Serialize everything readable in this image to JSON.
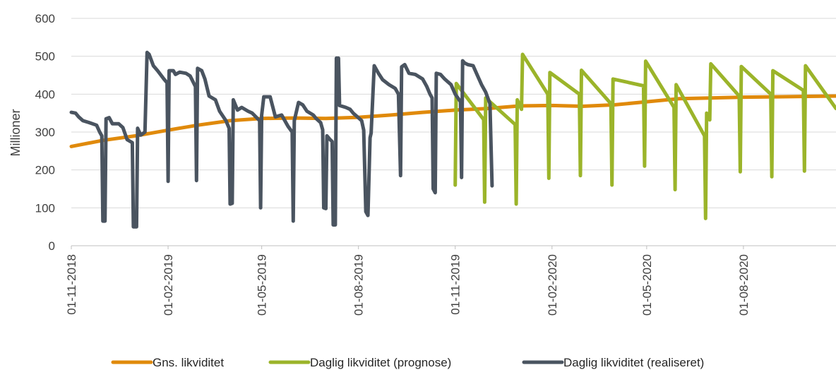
{
  "chart_data": {
    "type": "line",
    "ylabel": "Millioner",
    "ylim": [
      0,
      600
    ],
    "yticks": [
      "0",
      "100",
      "200",
      "300",
      "400",
      "500",
      "600"
    ],
    "xlim": [
      "2018-11-01",
      "2020-10-28"
    ],
    "xticks": [
      "01-11-2018",
      "01-02-2019",
      "01-05-2019",
      "01-08-2019",
      "01-11-2019",
      "01-02-2020",
      "01-05-2020",
      "01-08-2020"
    ],
    "grid": true,
    "legend_position": "bottom",
    "series": [
      {
        "name": "Gns. likviditet",
        "color": "#E08A0B",
        "points": [
          [
            "2018-11-01",
            262
          ],
          [
            "2018-12-01",
            278
          ],
          [
            "2019-01-01",
            290
          ],
          [
            "2019-02-01",
            305
          ],
          [
            "2019-03-01",
            318
          ],
          [
            "2019-04-01",
            330
          ],
          [
            "2019-05-01",
            336
          ],
          [
            "2019-06-01",
            337
          ],
          [
            "2019-07-01",
            336
          ],
          [
            "2019-08-01",
            339
          ],
          [
            "2019-09-01",
            345
          ],
          [
            "2019-10-01",
            352
          ],
          [
            "2019-11-01",
            358
          ],
          [
            "2019-12-01",
            362
          ],
          [
            "2020-01-01",
            369
          ],
          [
            "2020-02-01",
            370
          ],
          [
            "2020-03-01",
            368
          ],
          [
            "2020-04-01",
            372
          ],
          [
            "2020-05-01",
            380
          ],
          [
            "2020-06-01",
            388
          ],
          [
            "2020-07-01",
            390
          ],
          [
            "2020-08-01",
            392
          ],
          [
            "2020-09-01",
            393
          ],
          [
            "2020-10-28",
            395
          ]
        ]
      },
      {
        "name": "Daglig likviditet (prognose)",
        "color": "#9BB42A",
        "points": [
          [
            "2019-11-01",
            160
          ],
          [
            "2019-11-02",
            428
          ],
          [
            "2019-11-28",
            333
          ],
          [
            "2019-11-29",
            115
          ],
          [
            "2019-11-30",
            390
          ],
          [
            "2019-12-28",
            320
          ],
          [
            "2019-12-29",
            110
          ],
          [
            "2019-12-30",
            385
          ],
          [
            "2020-01-03",
            360
          ],
          [
            "2020-01-04",
            505
          ],
          [
            "2020-01-28",
            400
          ],
          [
            "2020-01-29",
            178
          ],
          [
            "2020-01-30",
            457
          ],
          [
            "2020-02-27",
            400
          ],
          [
            "2020-02-28",
            185
          ],
          [
            "2020-02-29",
            463
          ],
          [
            "2020-03-28",
            375
          ],
          [
            "2020-03-29",
            160
          ],
          [
            "2020-03-30",
            440
          ],
          [
            "2020-04-28",
            422
          ],
          [
            "2020-04-29",
            210
          ],
          [
            "2020-04-30",
            487
          ],
          [
            "2020-05-27",
            365
          ],
          [
            "2020-05-28",
            148
          ],
          [
            "2020-05-29",
            425
          ],
          [
            "2020-06-25",
            290
          ],
          [
            "2020-06-26",
            72
          ],
          [
            "2020-06-27",
            350
          ],
          [
            "2020-06-30",
            332
          ],
          [
            "2020-07-01",
            480
          ],
          [
            "2020-07-28",
            395
          ],
          [
            "2020-07-29",
            195
          ],
          [
            "2020-07-30",
            473
          ],
          [
            "2020-08-27",
            400
          ],
          [
            "2020-08-28",
            182
          ],
          [
            "2020-08-29",
            462
          ],
          [
            "2020-09-27",
            410
          ],
          [
            "2020-09-28",
            197
          ],
          [
            "2020-09-29",
            475
          ],
          [
            "2020-10-28",
            362
          ]
        ]
      },
      {
        "name": "Daglig likviditet (realiseret)",
        "color": "#4A5460",
        "points": [
          [
            "2018-11-01",
            352
          ],
          [
            "2018-11-05",
            350
          ],
          [
            "2018-11-08",
            340
          ],
          [
            "2018-11-12",
            330
          ],
          [
            "2018-11-18",
            325
          ],
          [
            "2018-11-25",
            318
          ],
          [
            "2018-11-28",
            300
          ],
          [
            "2018-11-30",
            290
          ],
          [
            "2018-12-01",
            65
          ],
          [
            "2018-12-03",
            65
          ],
          [
            "2018-12-04",
            335
          ],
          [
            "2018-12-07",
            338
          ],
          [
            "2018-12-10",
            322
          ],
          [
            "2018-12-16",
            322
          ],
          [
            "2018-12-20",
            312
          ],
          [
            "2018-12-24",
            280
          ],
          [
            "2018-12-29",
            272
          ],
          [
            "2018-12-30",
            50
          ],
          [
            "2019-01-02",
            50
          ],
          [
            "2019-01-03",
            310
          ],
          [
            "2019-01-06",
            292
          ],
          [
            "2019-01-10",
            300
          ],
          [
            "2019-01-12",
            510
          ],
          [
            "2019-01-14",
            505
          ],
          [
            "2019-01-18",
            475
          ],
          [
            "2019-01-22",
            462
          ],
          [
            "2019-01-28",
            440
          ],
          [
            "2019-01-31",
            430
          ],
          [
            "2019-02-01",
            170
          ],
          [
            "2019-02-02",
            462
          ],
          [
            "2019-02-06",
            462
          ],
          [
            "2019-02-08",
            452
          ],
          [
            "2019-02-12",
            458
          ],
          [
            "2019-02-18",
            455
          ],
          [
            "2019-02-22",
            448
          ],
          [
            "2019-02-27",
            420
          ],
          [
            "2019-02-28",
            172
          ],
          [
            "2019-03-01",
            468
          ],
          [
            "2019-03-05",
            462
          ],
          [
            "2019-03-08",
            440
          ],
          [
            "2019-03-12",
            395
          ],
          [
            "2019-03-18",
            385
          ],
          [
            "2019-03-22",
            355
          ],
          [
            "2019-03-28",
            330
          ],
          [
            "2019-03-31",
            310
          ],
          [
            "2019-04-01",
            110
          ],
          [
            "2019-04-03",
            112
          ],
          [
            "2019-04-04",
            385
          ],
          [
            "2019-04-08",
            358
          ],
          [
            "2019-04-12",
            365
          ],
          [
            "2019-04-18",
            355
          ],
          [
            "2019-04-22",
            350
          ],
          [
            "2019-04-29",
            330
          ],
          [
            "2019-04-30",
            100
          ],
          [
            "2019-05-01",
            345
          ],
          [
            "2019-05-03",
            393
          ],
          [
            "2019-05-09",
            393
          ],
          [
            "2019-05-14",
            340
          ],
          [
            "2019-05-20",
            345
          ],
          [
            "2019-05-26",
            315
          ],
          [
            "2019-05-30",
            300
          ],
          [
            "2019-05-31",
            65
          ],
          [
            "2019-06-01",
            330
          ],
          [
            "2019-06-05",
            378
          ],
          [
            "2019-06-09",
            372
          ],
          [
            "2019-06-13",
            355
          ],
          [
            "2019-06-19",
            345
          ],
          [
            "2019-06-22",
            335
          ],
          [
            "2019-06-26",
            325
          ],
          [
            "2019-06-28",
            306
          ],
          [
            "2019-06-29",
            100
          ],
          [
            "2019-07-01",
            98
          ],
          [
            "2019-07-02",
            290
          ],
          [
            "2019-07-05",
            280
          ],
          [
            "2019-07-07",
            275
          ],
          [
            "2019-07-08",
            55
          ],
          [
            "2019-07-10",
            55
          ],
          [
            "2019-07-11",
            495
          ],
          [
            "2019-07-13",
            495
          ],
          [
            "2019-07-14",
            370
          ],
          [
            "2019-07-20",
            365
          ],
          [
            "2019-07-24",
            360
          ],
          [
            "2019-07-27",
            350
          ],
          [
            "2019-07-31",
            340
          ],
          [
            "2019-08-04",
            330
          ],
          [
            "2019-08-06",
            305
          ],
          [
            "2019-08-08",
            90
          ],
          [
            "2019-08-10",
            80
          ],
          [
            "2019-08-12",
            285
          ],
          [
            "2019-08-13",
            297
          ],
          [
            "2019-08-16",
            475
          ],
          [
            "2019-08-20",
            455
          ],
          [
            "2019-08-24",
            438
          ],
          [
            "2019-08-30",
            425
          ],
          [
            "2019-09-05",
            415
          ],
          [
            "2019-09-08",
            400
          ],
          [
            "2019-09-10",
            185
          ],
          [
            "2019-09-11",
            472
          ],
          [
            "2019-09-14",
            478
          ],
          [
            "2019-09-18",
            455
          ],
          [
            "2019-09-24",
            452
          ],
          [
            "2019-10-01",
            440
          ],
          [
            "2019-10-05",
            420
          ],
          [
            "2019-10-08",
            400
          ],
          [
            "2019-10-10",
            390
          ],
          [
            "2019-10-11",
            150
          ],
          [
            "2019-10-13",
            140
          ],
          [
            "2019-10-14",
            455
          ],
          [
            "2019-10-18",
            452
          ],
          [
            "2019-10-22",
            440
          ],
          [
            "2019-10-28",
            425
          ],
          [
            "2019-11-01",
            400
          ],
          [
            "2019-11-06",
            380
          ],
          [
            "2019-11-07",
            180
          ],
          [
            "2019-11-08",
            488
          ],
          [
            "2019-11-10",
            482
          ],
          [
            "2019-11-13",
            478
          ],
          [
            "2019-11-18",
            475
          ],
          [
            "2019-11-22",
            450
          ],
          [
            "2019-11-26",
            425
          ],
          [
            "2019-11-30",
            405
          ],
          [
            "2019-12-02",
            390
          ],
          [
            "2019-12-04",
            375
          ],
          [
            "2019-12-06",
            158
          ]
        ]
      }
    ]
  }
}
